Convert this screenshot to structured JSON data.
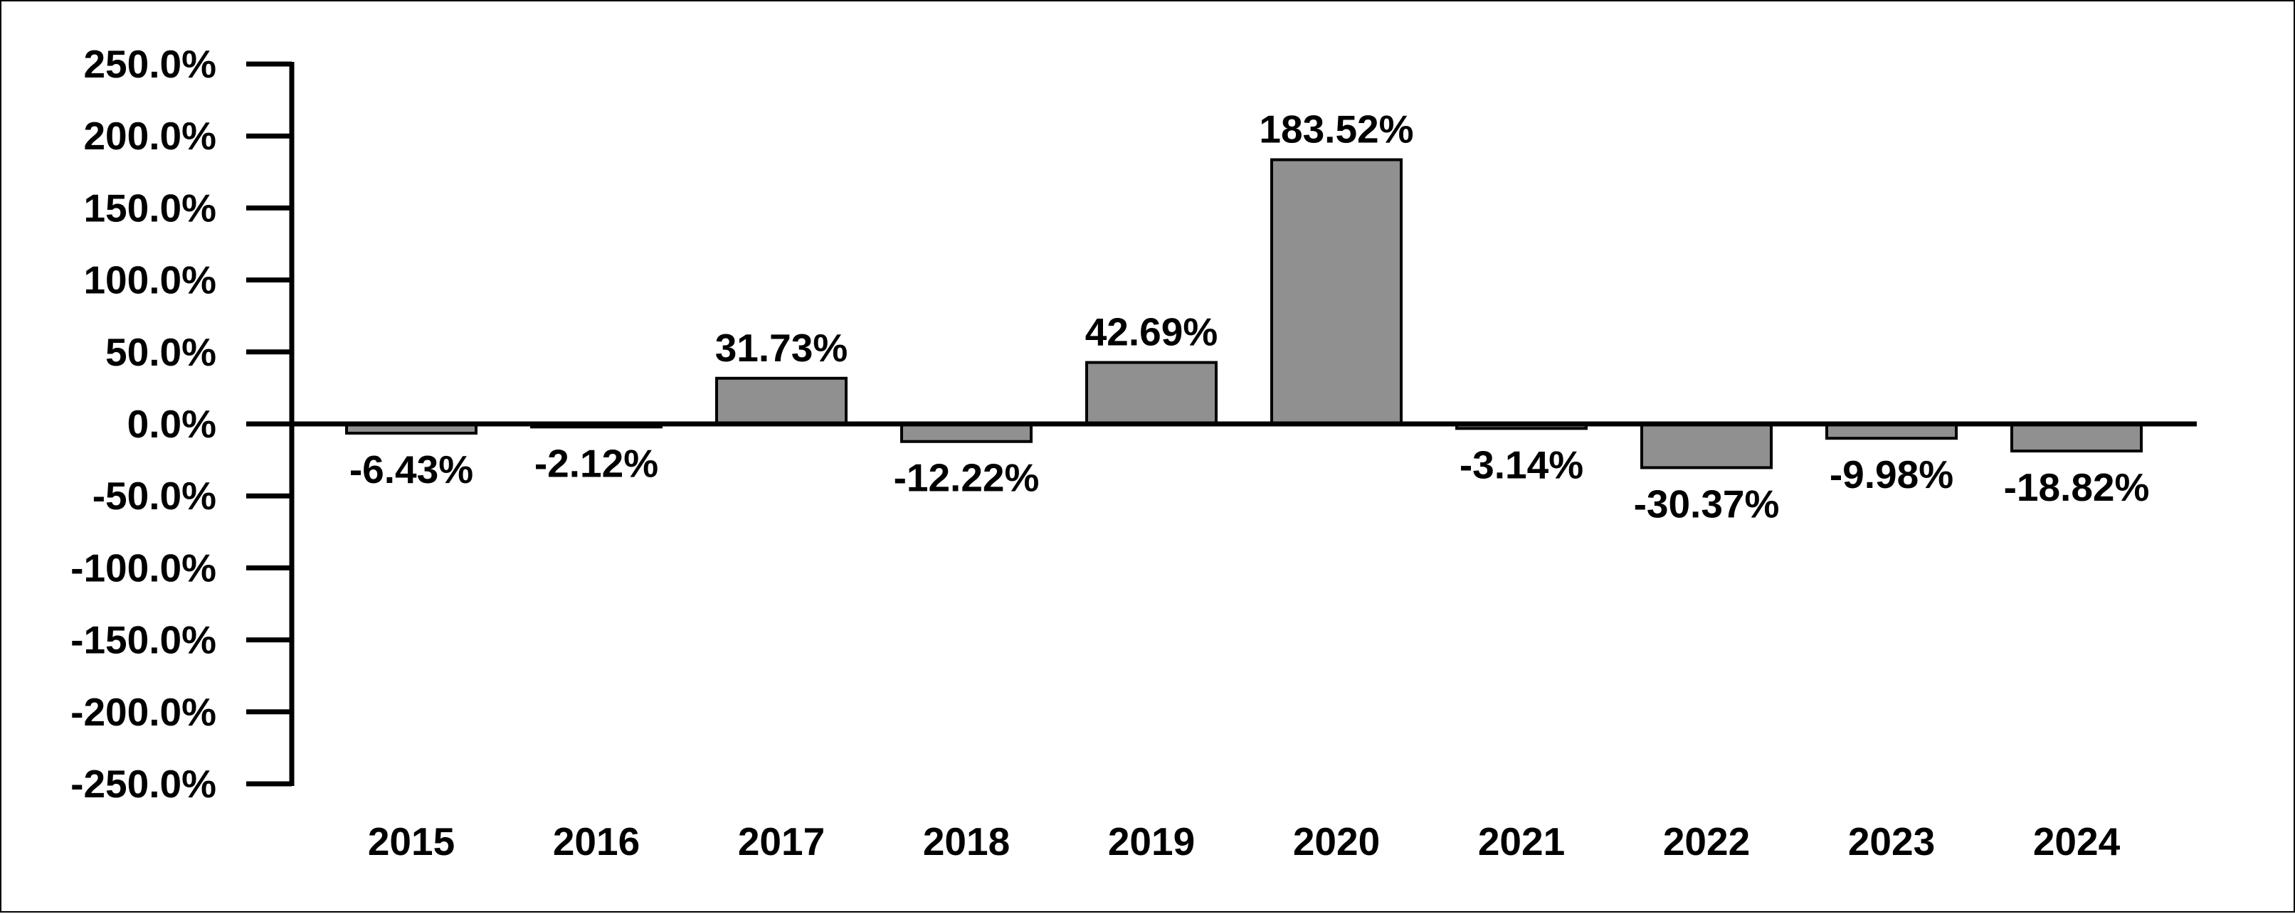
{
  "chart_data": {
    "type": "bar",
    "categories": [
      "2015",
      "2016",
      "2017",
      "2018",
      "2019",
      "2020",
      "2021",
      "2022",
      "2023",
      "2024"
    ],
    "values": [
      -6.43,
      -2.12,
      31.73,
      -12.22,
      42.69,
      183.52,
      -3.14,
      -30.37,
      -9.98,
      -18.82
    ],
    "data_labels": [
      "-6.43%",
      "-2.12%",
      "31.73%",
      "-12.22%",
      "42.69%",
      "183.52%",
      "-3.14%",
      "-30.37%",
      "-9.98%",
      "-18.82%"
    ],
    "ylim": [
      -250,
      250
    ],
    "y_ticks": [
      250,
      200,
      150,
      100,
      50,
      0,
      -50,
      -100,
      -150,
      -200,
      -250
    ],
    "y_tick_labels": [
      "250.0%",
      "200.0%",
      "150.0%",
      "100.0%",
      "50.0%",
      "0.0%",
      "-50.0%",
      "-100.0%",
      "-150.0%",
      "-200.0%",
      "-250.0%"
    ],
    "bar_color": "#909090",
    "axis_color": "#000000",
    "grid": false,
    "legend": "none"
  }
}
